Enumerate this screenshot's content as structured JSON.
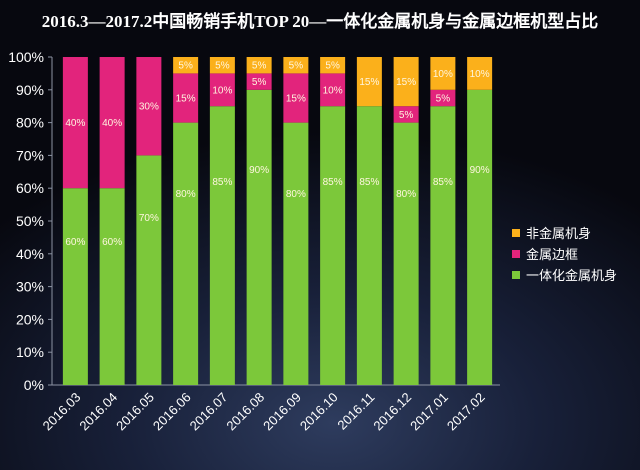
{
  "chart_data": {
    "type": "bar",
    "stacked": true,
    "title": "2016.3—2017.2中国畅销手机TOP 20—一体化金属机身与金属边框机型占比",
    "xlabel": "",
    "ylabel": "",
    "categories": [
      "2016.03",
      "2016.04",
      "2016.05",
      "2016.06",
      "2016.07",
      "2016.08",
      "2016.09",
      "2016.10",
      "2016.11",
      "2016.12",
      "2017.01",
      "2017.02"
    ],
    "ylim": [
      0,
      100
    ],
    "y_ticks": [
      0,
      10,
      20,
      30,
      40,
      50,
      60,
      70,
      80,
      90,
      100
    ],
    "y_tick_labels": [
      "0%",
      "10%",
      "20%",
      "30%",
      "40%",
      "50%",
      "60%",
      "70%",
      "80%",
      "90%",
      "100%"
    ],
    "grid": false,
    "legend_position": "right",
    "series": [
      {
        "name": "一体化金属机身",
        "color": "#7cc83a",
        "values": [
          60,
          60,
          70,
          80,
          85,
          90,
          80,
          85,
          85,
          80,
          85,
          90
        ],
        "labels": [
          "60%",
          "60%",
          "70%",
          "80%",
          "85%",
          "90%",
          "80%",
          "85%",
          "85%",
          "80%",
          "85%",
          "90%"
        ]
      },
      {
        "name": "金属边框",
        "color": "#e2247c",
        "values": [
          40,
          40,
          30,
          15,
          10,
          5,
          15,
          10,
          0,
          5,
          5,
          0
        ],
        "labels": [
          "40%",
          "40%",
          "30%",
          "15%",
          "10%",
          "5%",
          "15%",
          "10%",
          "",
          "5%",
          "5%",
          ""
        ]
      },
      {
        "name": "非金属机身",
        "color": "#fbb01b",
        "values": [
          0,
          0,
          0,
          5,
          5,
          5,
          5,
          5,
          15,
          15,
          10,
          10
        ],
        "labels": [
          "",
          "",
          "",
          "5%",
          "5%",
          "5%",
          "5%",
          "5%",
          "15%",
          "15%",
          "10%",
          "10%"
        ]
      }
    ]
  }
}
